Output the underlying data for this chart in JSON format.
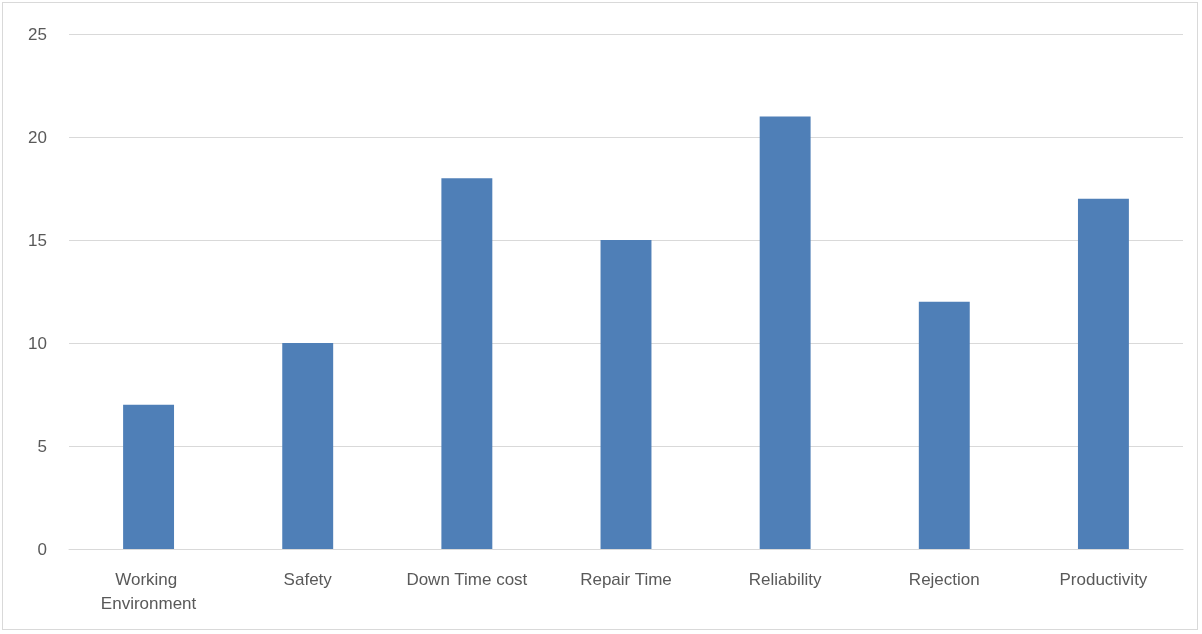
{
  "chart_data": {
    "type": "bar",
    "categories": [
      "Working Environment",
      "Safety",
      "Down Time cost",
      "Repair Time",
      "Reliability",
      "Rejection",
      "Productivity"
    ],
    "values": [
      7,
      10,
      18,
      15,
      21,
      12,
      17
    ],
    "color": "#4f7fb7",
    "ylim": [
      0,
      25
    ],
    "yticks": [
      0,
      5,
      10,
      15,
      20,
      25
    ],
    "grid": "y"
  }
}
